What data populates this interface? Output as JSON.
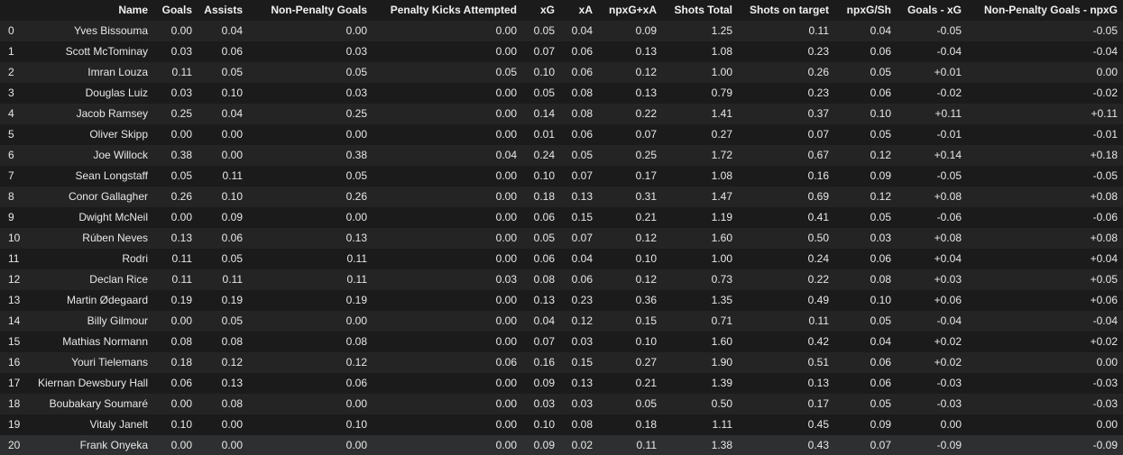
{
  "columns": [
    "Name",
    "Goals",
    "Assists",
    "Non-Penalty Goals",
    "Penalty Kicks Attempted",
    "xG",
    "xA",
    "npxG+xA",
    "Shots Total",
    "Shots on target",
    "npxG/Sh",
    "Goals - xG",
    "Non-Penalty Goals - npxG"
  ],
  "rows": [
    {
      "idx": "0",
      "cells": [
        "Yves Bissouma",
        "0.00",
        "0.04",
        "0.00",
        "0.00",
        "0.05",
        "0.04",
        "0.09",
        "1.25",
        "0.11",
        "0.04",
        "-0.05",
        "-0.05"
      ]
    },
    {
      "idx": "1",
      "cells": [
        "Scott McTominay",
        "0.03",
        "0.06",
        "0.03",
        "0.00",
        "0.07",
        "0.06",
        "0.13",
        "1.08",
        "0.23",
        "0.06",
        "-0.04",
        "-0.04"
      ]
    },
    {
      "idx": "2",
      "cells": [
        "Imran Louza",
        "0.11",
        "0.05",
        "0.05",
        "0.05",
        "0.10",
        "0.06",
        "0.12",
        "1.00",
        "0.26",
        "0.05",
        "+0.01",
        "0.00"
      ]
    },
    {
      "idx": "3",
      "cells": [
        "Douglas Luiz",
        "0.03",
        "0.10",
        "0.03",
        "0.00",
        "0.05",
        "0.08",
        "0.13",
        "0.79",
        "0.23",
        "0.06",
        "-0.02",
        "-0.02"
      ]
    },
    {
      "idx": "4",
      "cells": [
        "Jacob Ramsey",
        "0.25",
        "0.04",
        "0.25",
        "0.00",
        "0.14",
        "0.08",
        "0.22",
        "1.41",
        "0.37",
        "0.10",
        "+0.11",
        "+0.11"
      ]
    },
    {
      "idx": "5",
      "cells": [
        "Oliver Skipp",
        "0.00",
        "0.00",
        "0.00",
        "0.00",
        "0.01",
        "0.06",
        "0.07",
        "0.27",
        "0.07",
        "0.05",
        "-0.01",
        "-0.01"
      ]
    },
    {
      "idx": "6",
      "cells": [
        "Joe Willock",
        "0.38",
        "0.00",
        "0.38",
        "0.04",
        "0.24",
        "0.05",
        "0.25",
        "1.72",
        "0.67",
        "0.12",
        "+0.14",
        "+0.18"
      ]
    },
    {
      "idx": "7",
      "cells": [
        "Sean Longstaff",
        "0.05",
        "0.11",
        "0.05",
        "0.00",
        "0.10",
        "0.07",
        "0.17",
        "1.08",
        "0.16",
        "0.09",
        "-0.05",
        "-0.05"
      ]
    },
    {
      "idx": "8",
      "cells": [
        "Conor Gallagher",
        "0.26",
        "0.10",
        "0.26",
        "0.00",
        "0.18",
        "0.13",
        "0.31",
        "1.47",
        "0.69",
        "0.12",
        "+0.08",
        "+0.08"
      ]
    },
    {
      "idx": "9",
      "cells": [
        "Dwight McNeil",
        "0.00",
        "0.09",
        "0.00",
        "0.00",
        "0.06",
        "0.15",
        "0.21",
        "1.19",
        "0.41",
        "0.05",
        "-0.06",
        "-0.06"
      ]
    },
    {
      "idx": "10",
      "cells": [
        "Rúben Neves",
        "0.13",
        "0.06",
        "0.13",
        "0.00",
        "0.05",
        "0.07",
        "0.12",
        "1.60",
        "0.50",
        "0.03",
        "+0.08",
        "+0.08"
      ]
    },
    {
      "idx": "11",
      "cells": [
        "Rodri",
        "0.11",
        "0.05",
        "0.11",
        "0.00",
        "0.06",
        "0.04",
        "0.10",
        "1.00",
        "0.24",
        "0.06",
        "+0.04",
        "+0.04"
      ]
    },
    {
      "idx": "12",
      "cells": [
        "Declan Rice",
        "0.11",
        "0.11",
        "0.11",
        "0.03",
        "0.08",
        "0.06",
        "0.12",
        "0.73",
        "0.22",
        "0.08",
        "+0.03",
        "+0.05"
      ]
    },
    {
      "idx": "13",
      "cells": [
        "Martin Ødegaard",
        "0.19",
        "0.19",
        "0.19",
        "0.00",
        "0.13",
        "0.23",
        "0.36",
        "1.35",
        "0.49",
        "0.10",
        "+0.06",
        "+0.06"
      ]
    },
    {
      "idx": "14",
      "cells": [
        "Billy Gilmour",
        "0.00",
        "0.05",
        "0.00",
        "0.00",
        "0.04",
        "0.12",
        "0.15",
        "0.71",
        "0.11",
        "0.05",
        "-0.04",
        "-0.04"
      ]
    },
    {
      "idx": "15",
      "cells": [
        "Mathias Normann",
        "0.08",
        "0.08",
        "0.08",
        "0.00",
        "0.07",
        "0.03",
        "0.10",
        "1.60",
        "0.42",
        "0.04",
        "+0.02",
        "+0.02"
      ]
    },
    {
      "idx": "16",
      "cells": [
        "Youri Tielemans",
        "0.18",
        "0.12",
        "0.12",
        "0.06",
        "0.16",
        "0.15",
        "0.27",
        "1.90",
        "0.51",
        "0.06",
        "+0.02",
        "0.00"
      ]
    },
    {
      "idx": "17",
      "cells": [
        "Kiernan Dewsbury Hall",
        "0.06",
        "0.13",
        "0.06",
        "0.00",
        "0.09",
        "0.13",
        "0.21",
        "1.39",
        "0.13",
        "0.06",
        "-0.03",
        "-0.03"
      ]
    },
    {
      "idx": "18",
      "cells": [
        "Boubakary Soumaré",
        "0.00",
        "0.08",
        "0.00",
        "0.00",
        "0.03",
        "0.03",
        "0.05",
        "0.50",
        "0.17",
        "0.05",
        "-0.03",
        "-0.03"
      ]
    },
    {
      "idx": "19",
      "cells": [
        "Vitaly Janelt",
        "0.10",
        "0.00",
        "0.10",
        "0.00",
        "0.10",
        "0.08",
        "0.18",
        "1.11",
        "0.45",
        "0.09",
        "0.00",
        "0.00"
      ]
    },
    {
      "idx": "20",
      "cells": [
        "Frank Onyeka",
        "0.00",
        "0.00",
        "0.00",
        "0.00",
        "0.09",
        "0.02",
        "0.11",
        "1.38",
        "0.43",
        "0.07",
        "-0.09",
        "-0.09"
      ]
    }
  ]
}
